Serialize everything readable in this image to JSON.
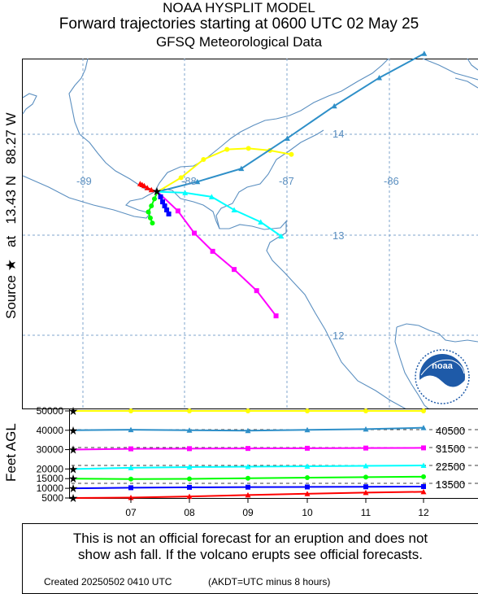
{
  "header": {
    "title_line1": "NOAA HYSPLIT MODEL",
    "title_line2": "Forward trajectories starting at 0600 UTC 02 May 25",
    "title_line3": "GFSQ Meteorological Data"
  },
  "source_label": {
    "prefix": "Source",
    "star": "★",
    "at": "at",
    "lat": "13.43 N",
    "lon": "88.27 W"
  },
  "map": {
    "lon_labels": [
      "-89",
      "-88",
      "-87",
      "-86"
    ],
    "lat_labels": [
      "14",
      "13",
      "12"
    ],
    "logo_text": "noaa"
  },
  "height_panel": {
    "ylabel": "Feet AGL",
    "y_ticks": [
      "50000",
      "40000",
      "30000",
      "20000",
      "15000",
      "10000",
      "5000"
    ],
    "x_ticks": [
      "07",
      "08",
      "09",
      "10",
      "11",
      "12"
    ],
    "right_labels": [
      "40500",
      "31500",
      "22500",
      "13500"
    ]
  },
  "footer": {
    "disclaimer_line1": "This is not an official forecast for an eruption and does not",
    "disclaimer_line2": "show ash fall. If the volcano erupts see official forecasts.",
    "created": "Created 20250502 0410 UTC",
    "note": "(AKDT=UTC minus 8 hours)"
  },
  "colors": {
    "coast": "#5b8fc0",
    "grid": "#7fa4cc",
    "traj_50000": "#ffff00",
    "traj_40000": "#2e8fc8",
    "traj_30000": "#ff00ff",
    "traj_20000": "#00ffff",
    "traj_15000": "#00ff00",
    "traj_10000": "#0000ff",
    "traj_5000": "#ff0000"
  },
  "chart_data": {
    "type": "line",
    "source": {
      "lat": 13.43,
      "lon": -88.27
    },
    "height_axis_unit": "Feet AGL",
    "x_ticks": [
      "07",
      "08",
      "09",
      "10",
      "11",
      "12"
    ],
    "series": [
      {
        "name": "50000",
        "color": "#ffff00",
        "heights_ft": [
          50000,
          50000,
          50000,
          50000,
          50000,
          50000,
          50000
        ]
      },
      {
        "name": "40000",
        "color": "#2e8fc8",
        "heights_ft": [
          40000,
          40300,
          40000,
          39800,
          40200,
          40600,
          41300
        ]
      },
      {
        "name": "30000",
        "color": "#ff00ff",
        "heights_ft": [
          30000,
          30400,
          30500,
          30600,
          30700,
          30800,
          30900
        ]
      },
      {
        "name": "20000",
        "color": "#00ffff",
        "heights_ft": [
          20000,
          20600,
          21000,
          21200,
          21400,
          21600,
          21800
        ]
      },
      {
        "name": "15000",
        "color": "#00ff00",
        "heights_ft": [
          15000,
          14800,
          14900,
          15200,
          15500,
          15800,
          16000
        ]
      },
      {
        "name": "10000",
        "color": "#0000ff",
        "heights_ft": [
          10000,
          10300,
          10500,
          10600,
          10700,
          10800,
          10900
        ]
      },
      {
        "name": "5000",
        "color": "#ff0000",
        "heights_ft": [
          5000,
          5200,
          5800,
          6500,
          7200,
          7800,
          8200
        ]
      }
    ]
  }
}
